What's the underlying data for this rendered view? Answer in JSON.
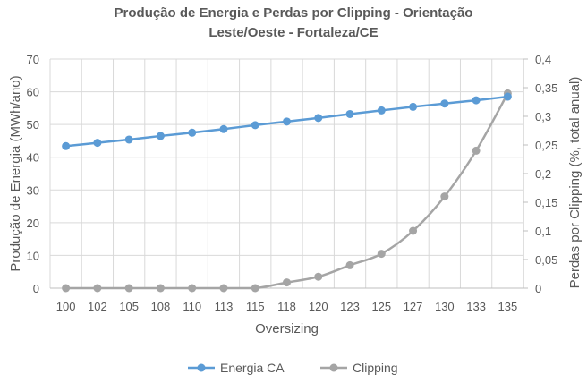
{
  "chart_data": {
    "type": "line",
    "title_line1": "Produção de Energia e Perdas por Clipping - Orientação",
    "title_line2": "Leste/Oeste - Fortaleza/CE",
    "xlabel": "Oversizing",
    "ylabel": "Produção de Energia (MWh/ano)",
    "y2label": "Perdas por Clipping (%, total anual)",
    "categories": [
      "100",
      "102",
      "105",
      "108",
      "110",
      "113",
      "115",
      "118",
      "120",
      "123",
      "125",
      "127",
      "130",
      "133",
      "135"
    ],
    "ylim": [
      0,
      70
    ],
    "yticks": [
      "0",
      "10",
      "20",
      "30",
      "40",
      "50",
      "60",
      "70"
    ],
    "y2lim": [
      0,
      0.4
    ],
    "y2ticks": [
      "0",
      "0,05",
      "0,1",
      "0,15",
      "0,2",
      "0,25",
      "0,3",
      "0,35",
      "0,4"
    ],
    "grid": true,
    "legend_position": "bottom",
    "series": [
      {
        "name": "Energia CA",
        "axis": "left",
        "color": "#5B9BD5",
        "values": [
          43.4,
          44.4,
          45.4,
          46.5,
          47.5,
          48.6,
          49.8,
          50.9,
          52.0,
          53.2,
          54.3,
          55.4,
          56.4,
          57.4,
          58.5
        ]
      },
      {
        "name": "Clipping",
        "axis": "right",
        "color": "#A5A5A5",
        "values": [
          0,
          0,
          0,
          0,
          0,
          0,
          0,
          0.01,
          0.02,
          0.04,
          0.06,
          0.1,
          0.16,
          0.24,
          0.34
        ]
      }
    ]
  }
}
